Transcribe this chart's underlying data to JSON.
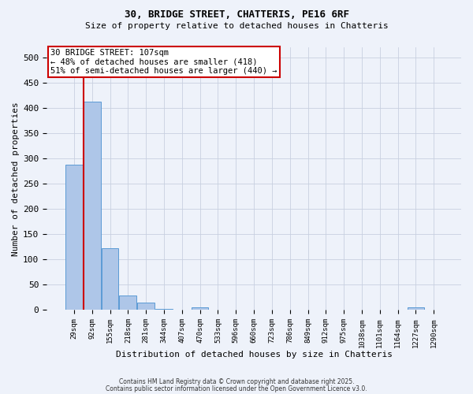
{
  "title1": "30, BRIDGE STREET, CHATTERIS, PE16 6RF",
  "title2": "Size of property relative to detached houses in Chatteris",
  "xlabel": "Distribution of detached houses by size in Chatteris",
  "ylabel": "Number of detached properties",
  "bar_color": "#aec6e8",
  "bar_edge_color": "#5b9bd5",
  "categories": [
    "29sqm",
    "92sqm",
    "155sqm",
    "218sqm",
    "281sqm",
    "344sqm",
    "407sqm",
    "470sqm",
    "533sqm",
    "596sqm",
    "660sqm",
    "723sqm",
    "786sqm",
    "849sqm",
    "912sqm",
    "975sqm",
    "1038sqm",
    "1101sqm",
    "1164sqm",
    "1227sqm",
    "1290sqm"
  ],
  "values": [
    287,
    413,
    123,
    29,
    15,
    2,
    0,
    5,
    0,
    0,
    0,
    0,
    0,
    0,
    0,
    0,
    0,
    0,
    0,
    5,
    1
  ],
  "annotation_line1": "30 BRIDGE STREET: 107sqm",
  "annotation_line2": "← 48% of detached houses are smaller (418)",
  "annotation_line3": "51% of semi-detached houses are larger (440) →",
  "annotation_box_color": "#ffffff",
  "annotation_box_edge_color": "#cc0000",
  "vline_color": "#cc0000",
  "footer1": "Contains HM Land Registry data © Crown copyright and database right 2025.",
  "footer2": "Contains public sector information licensed under the Open Government Licence v3.0.",
  "background_color": "#eef2fa",
  "grid_color": "#c8d0e0",
  "ylim": [
    0,
    520
  ],
  "yticks": [
    0,
    50,
    100,
    150,
    200,
    250,
    300,
    350,
    400,
    450,
    500
  ]
}
